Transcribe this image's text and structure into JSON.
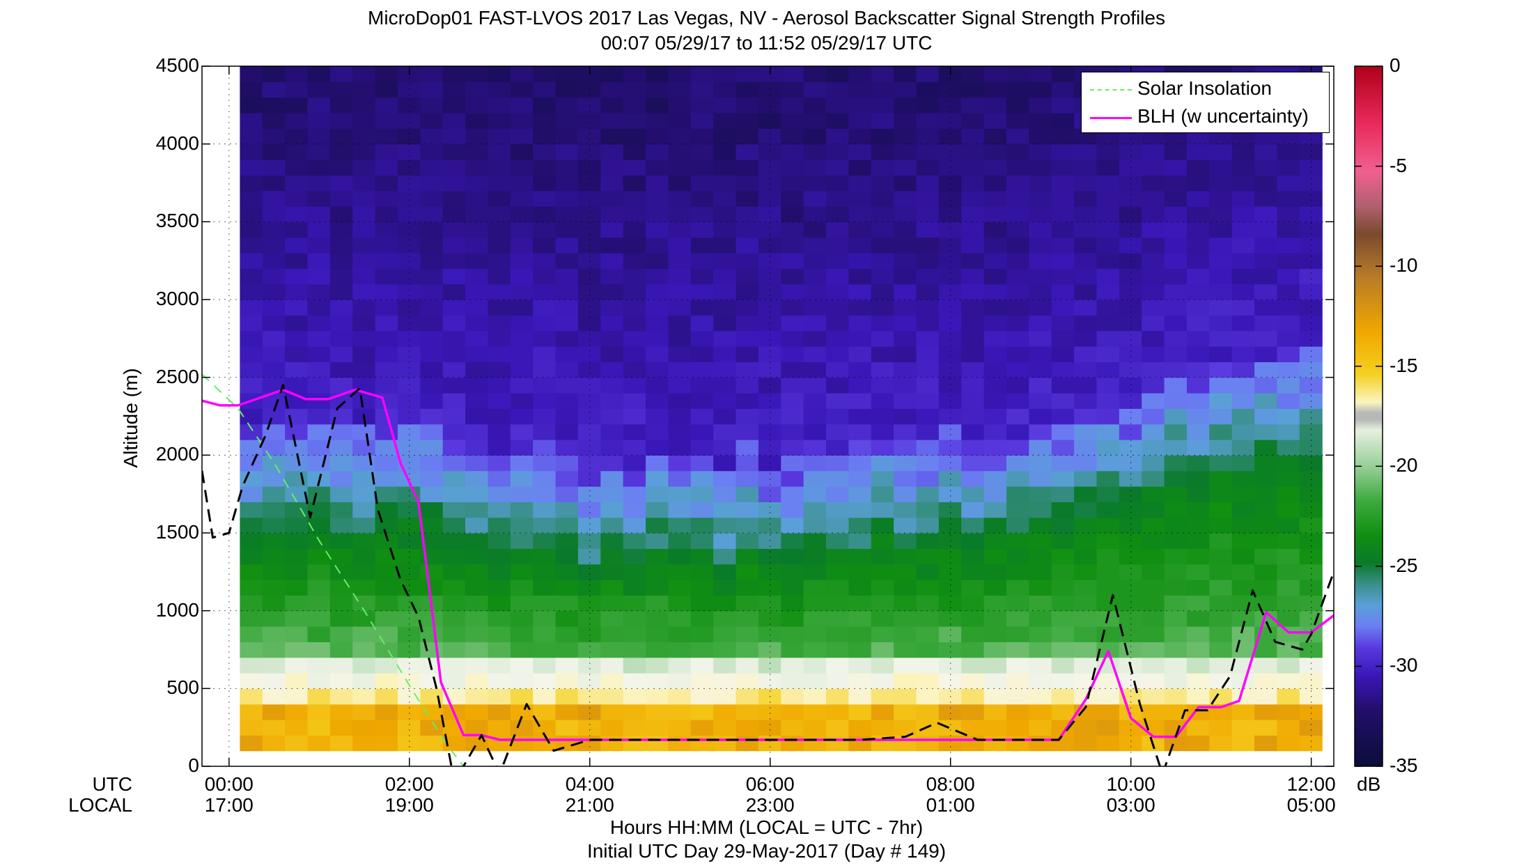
{
  "chart_data": {
    "type": "heatmap",
    "title": "MicroDop01 FAST-LVOS 2017 Las Vegas, NV - Aerosol Backscatter Signal Strength Profiles",
    "subtitle": "00:07 05/29/17 to 11:52 05/29/17  UTC",
    "ylabel": "Altitude (m)",
    "xlabel": "Hours HH:MM  (LOCAL = UTC - 7hr)",
    "xlabel2": "Initial UTC Day 29-May-2017 (Day # 149)",
    "x_row_labels": [
      "UTC",
      "LOCAL"
    ],
    "xlim": [
      -0.3,
      12.25
    ],
    "ylim": [
      0,
      4500
    ],
    "x_ticks_utc": [
      {
        "hour": 0,
        "label": "00:00"
      },
      {
        "hour": 2,
        "label": "02:00"
      },
      {
        "hour": 4,
        "label": "04:00"
      },
      {
        "hour": 6,
        "label": "06:00"
      },
      {
        "hour": 8,
        "label": "08:00"
      },
      {
        "hour": 10,
        "label": "10:00"
      },
      {
        "hour": 12,
        "label": "12:00"
      }
    ],
    "x_ticks_local": [
      "17:00",
      "19:00",
      "21:00",
      "23:00",
      "01:00",
      "03:00",
      "05:00"
    ],
    "y_ticks": [
      {
        "value": 0,
        "label": "0"
      },
      {
        "value": 500,
        "label": "500"
      },
      {
        "value": 1000,
        "label": "1000"
      },
      {
        "value": 1500,
        "label": "1500"
      },
      {
        "value": 2000,
        "label": "2000"
      },
      {
        "value": 2500,
        "label": "2500"
      },
      {
        "value": 3000,
        "label": "3000"
      },
      {
        "value": 3500,
        "label": "3500"
      },
      {
        "value": 4000,
        "label": "4000"
      },
      {
        "value": 4500,
        "label": "4500"
      }
    ],
    "grid": true,
    "legend_position": "top-right",
    "colorbar": {
      "unit": "dB",
      "range": [
        -35,
        0
      ],
      "ticks": [
        {
          "value": 0,
          "label": "0"
        },
        {
          "value": -5,
          "label": "-5"
        },
        {
          "value": -10,
          "label": "-10"
        },
        {
          "value": -15,
          "label": "-15"
        },
        {
          "value": -20,
          "label": "-20"
        },
        {
          "value": -25,
          "label": "-25"
        },
        {
          "value": -30,
          "label": "-30"
        },
        {
          "value": -35,
          "label": "-35"
        }
      ]
    },
    "heatmap": {
      "x_start": 0.12,
      "x_end": 11.95,
      "bin_hours": 0.25,
      "y_start": 100,
      "y_end": 4500,
      "bin_m": 100
    },
    "series": [
      {
        "name": "Solar Insolation",
        "style": "dashed",
        "color": "#66ee66",
        "x": [
          -0.3,
          0.1,
          0.5,
          1.0,
          1.5,
          2.0,
          2.4,
          2.6
        ],
        "y": [
          2520,
          2300,
          1950,
          1450,
          1000,
          520,
          150,
          0
        ]
      },
      {
        "name": "BLH (w uncertainty)",
        "style": "solid",
        "color": "#ff00ff",
        "x": [
          -0.3,
          -0.1,
          0.1,
          0.4,
          0.6,
          0.85,
          1.1,
          1.4,
          1.7,
          1.9,
          2.1,
          2.35,
          2.6,
          2.8,
          3.0,
          3.4,
          4.0,
          5.0,
          6.0,
          7.0,
          7.5,
          8.0,
          8.5,
          9.0,
          9.2,
          9.5,
          9.75,
          10.0,
          10.25,
          10.5,
          10.75,
          11.0,
          11.2,
          11.5,
          11.75,
          12.0,
          12.25
        ],
        "y": [
          2350,
          2320,
          2320,
          2380,
          2420,
          2360,
          2360,
          2420,
          2370,
          1950,
          1700,
          540,
          200,
          200,
          170,
          170,
          170,
          170,
          170,
          170,
          170,
          170,
          170,
          170,
          170,
          430,
          740,
          310,
          190,
          190,
          380,
          380,
          420,
          990,
          860,
          860,
          970
        ]
      },
      {
        "name": "",
        "style": "dashed",
        "color": "#000000",
        "x": [
          -0.3,
          -0.18,
          0.0,
          0.15,
          0.4,
          0.6,
          0.9,
          1.2,
          1.45,
          1.65,
          1.9,
          2.1,
          2.3,
          2.5,
          2.8,
          3.0,
          3.3,
          3.6,
          4.0,
          5.0,
          6.0,
          7.0,
          7.5,
          7.85,
          8.3,
          8.8,
          9.2,
          9.5,
          9.8,
          10.1,
          10.35,
          10.6,
          10.85,
          11.1,
          11.35,
          11.6,
          11.9,
          12.0,
          12.25
        ],
        "y": [
          1900,
          1470,
          1500,
          1800,
          2120,
          2450,
          1600,
          2300,
          2430,
          1650,
          1200,
          960,
          500,
          -100,
          200,
          -50,
          400,
          100,
          170,
          170,
          170,
          170,
          190,
          280,
          170,
          170,
          170,
          380,
          1100,
          400,
          -50,
          360,
          360,
          580,
          1130,
          800,
          750,
          850,
          1250
        ]
      }
    ]
  }
}
